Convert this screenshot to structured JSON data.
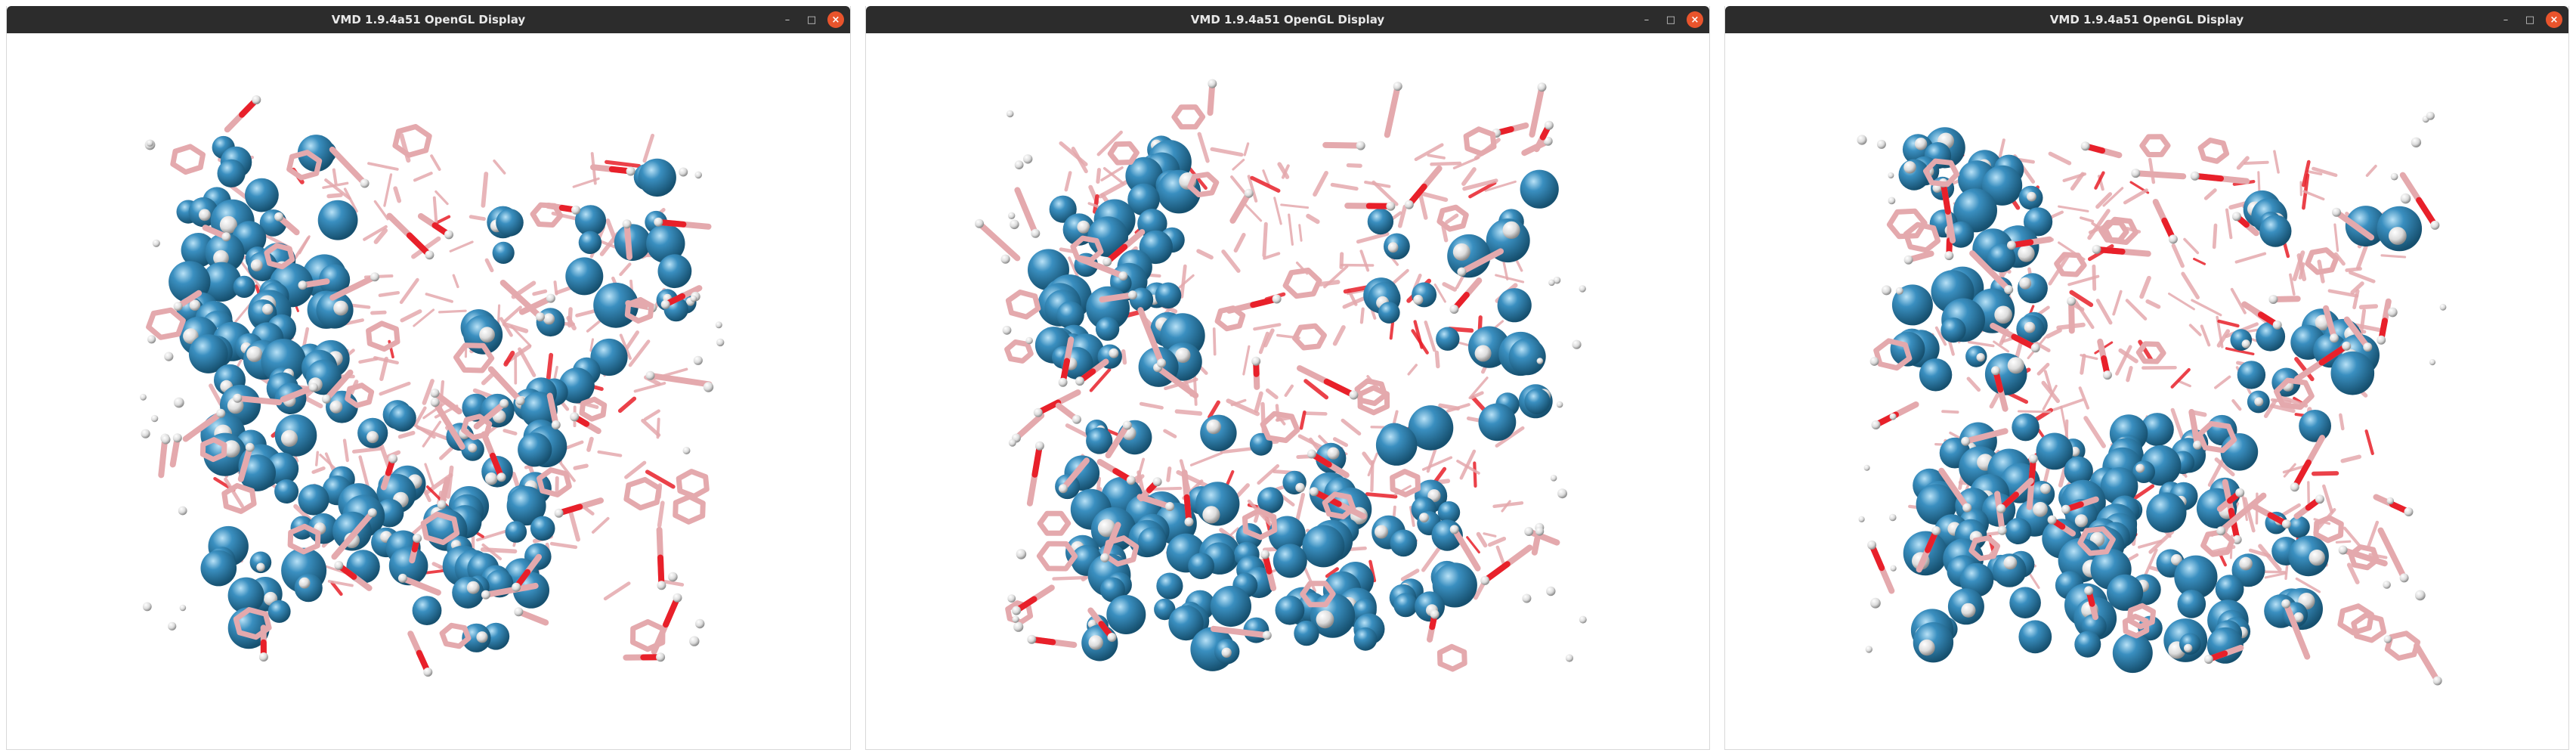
{
  "windows": [
    {
      "title": "VMD 1.9.4a51 OpenGL Display",
      "controls": {
        "minimize": "–",
        "maximize": "□",
        "close": "×"
      }
    },
    {
      "title": "VMD 1.9.4a51 OpenGL Display",
      "controls": {
        "minimize": "–",
        "maximize": "□",
        "close": "×"
      }
    },
    {
      "title": "VMD 1.9.4a51 OpenGL Display",
      "controls": {
        "minimize": "–",
        "maximize": "□",
        "close": "×"
      }
    }
  ],
  "colors": {
    "titlebar": "#2c2c2c",
    "close_button": "#e9542c",
    "sphere_blue": "#3a8fc0",
    "stick_pink": "#e4a9ad",
    "stick_red": "#e8202a",
    "hydrogen_white": "#f0f0f0",
    "background": "#ffffff"
  },
  "icons": [
    "minimize-icon",
    "maximize-icon",
    "close-icon"
  ]
}
